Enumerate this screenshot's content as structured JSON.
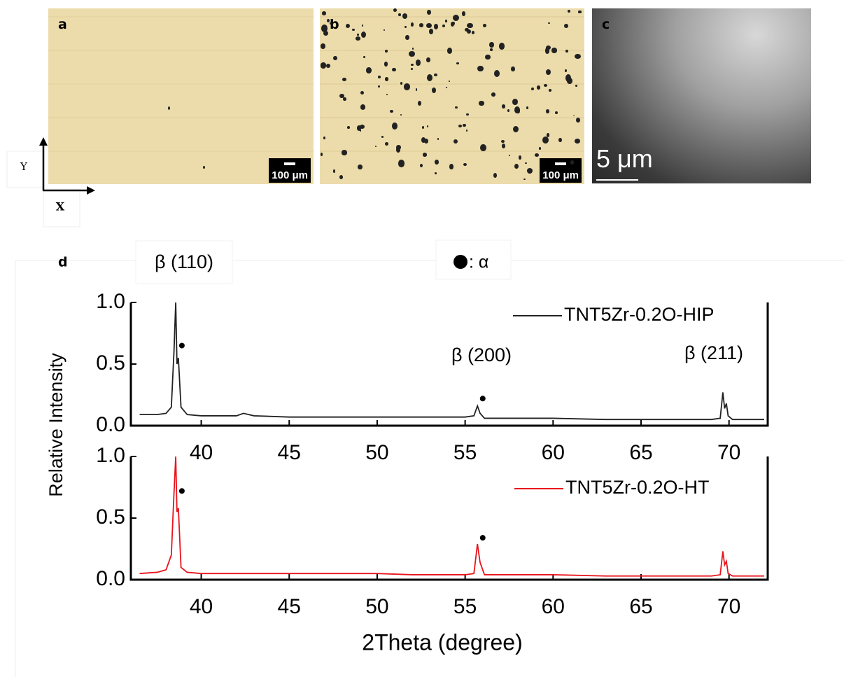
{
  "panels": [
    {
      "label": "a",
      "scale_bar": "100 μm"
    },
    {
      "label": "b",
      "scale_bar": "100 μm"
    },
    {
      "label": "c",
      "scale_bar": "5 μm"
    }
  ],
  "axes_indicator": {
    "y": "Y",
    "x": "X"
  },
  "chart_data": [
    {
      "type": "line",
      "panel_label": "d",
      "ylabel": "Relative Intensity",
      "annotations": [
        "β (110)",
        ": α",
        "β (200)",
        "β (211)"
      ],
      "x": [
        36.5,
        37.5,
        38.0,
        38.3,
        38.45,
        38.55,
        38.62,
        38.7,
        38.85,
        39.2,
        40,
        42,
        42.4,
        43,
        45,
        48,
        50,
        52,
        54,
        55,
        55.5,
        55.7,
        55.85,
        56.1,
        57,
        60,
        63,
        66,
        68,
        69,
        69.5,
        69.65,
        69.75,
        69.85,
        69.95,
        70.2,
        71,
        72
      ],
      "series": [
        {
          "name": "TNT5Zr-0.2O-HIP",
          "color": "#222222",
          "values": [
            0.09,
            0.09,
            0.1,
            0.15,
            0.6,
            1.0,
            0.5,
            0.55,
            0.15,
            0.09,
            0.08,
            0.08,
            0.1,
            0.08,
            0.07,
            0.07,
            0.07,
            0.07,
            0.07,
            0.07,
            0.08,
            0.16,
            0.1,
            0.06,
            0.06,
            0.06,
            0.05,
            0.05,
            0.05,
            0.05,
            0.06,
            0.27,
            0.14,
            0.18,
            0.08,
            0.05,
            0.05,
            0.05
          ]
        }
      ],
      "alpha_markers": {
        "x": [
          38.9,
          56.0
        ],
        "values": [
          0.65,
          0.22
        ]
      },
      "xlim": [
        36,
        72.2
      ],
      "ylim": [
        0,
        1.0
      ],
      "xticks": [
        40,
        45,
        50,
        55,
        60,
        65,
        70
      ],
      "yticks": [
        {
          "value": 0,
          "label": "0.0"
        },
        {
          "value": 0.5,
          "label": "0.5"
        },
        {
          "value": 1.0,
          "label": "1.0"
        }
      ]
    },
    {
      "type": "line",
      "xlabel": "2Theta (degree)",
      "x": [
        36.5,
        37.5,
        38.0,
        38.3,
        38.45,
        38.55,
        38.62,
        38.7,
        38.85,
        39.2,
        40,
        42,
        42.4,
        43,
        45,
        48,
        50,
        52,
        54,
        55,
        55.5,
        55.7,
        55.85,
        56.1,
        57,
        60,
        63,
        66,
        68,
        69,
        69.5,
        69.65,
        69.75,
        69.85,
        69.95,
        70.2,
        71,
        72
      ],
      "series": [
        {
          "name": "TNT5Zr-0.2O-HT",
          "color": "#e8141c",
          "values": [
            0.05,
            0.06,
            0.08,
            0.2,
            0.7,
            1.0,
            0.55,
            0.58,
            0.1,
            0.06,
            0.05,
            0.05,
            0.05,
            0.05,
            0.05,
            0.05,
            0.05,
            0.04,
            0.04,
            0.04,
            0.05,
            0.29,
            0.14,
            0.04,
            0.04,
            0.04,
            0.03,
            0.03,
            0.03,
            0.03,
            0.04,
            0.23,
            0.12,
            0.15,
            0.05,
            0.03,
            0.03,
            0.03
          ]
        }
      ],
      "alpha_markers": {
        "x": [
          38.9,
          56.0
        ],
        "values": [
          0.72,
          0.34
        ]
      },
      "xlim": [
        36,
        72.2
      ],
      "ylim": [
        0,
        1.0
      ],
      "xticks": [
        40,
        45,
        50,
        55,
        60,
        65,
        70
      ],
      "yticks": [
        {
          "value": 0,
          "label": "0.0"
        },
        {
          "value": 0.5,
          "label": "0.5"
        },
        {
          "value": 1.0,
          "label": "1.0"
        }
      ]
    }
  ]
}
